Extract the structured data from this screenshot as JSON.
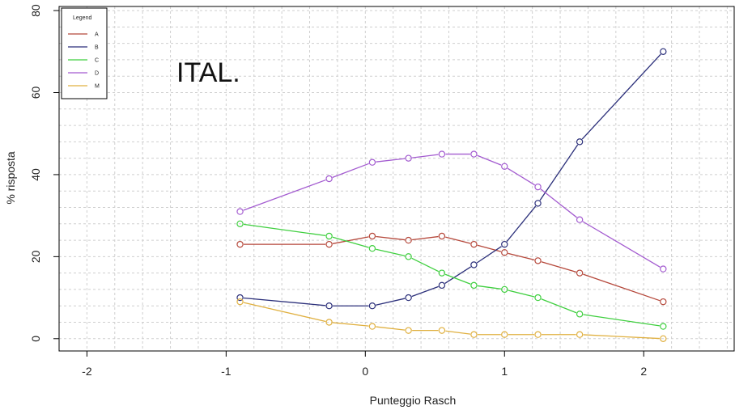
{
  "chart_data": {
    "type": "line",
    "title": "",
    "annotation": "ITAL.",
    "xlabel": "Punteggio Rasch",
    "ylabel": "% risposta",
    "xlim": [
      -2.2,
      2.65
    ],
    "ylim": [
      -3,
      81
    ],
    "xticks": [
      -2,
      -1,
      0,
      1,
      2
    ],
    "yticks": [
      0,
      20,
      40,
      60,
      80
    ],
    "xtick_labels": [
      "-2",
      "-1",
      "0",
      "1",
      "2"
    ],
    "ytick_labels": [
      "0",
      "20",
      "40",
      "60",
      "80"
    ],
    "grid": true,
    "legend": {
      "title": "Legend",
      "position": "top-left"
    },
    "x": [
      -0.9,
      -0.26,
      0.05,
      0.31,
      0.55,
      0.78,
      1.0,
      1.24,
      1.54,
      2.14
    ],
    "series": [
      {
        "name": "A",
        "color": "#b5473a",
        "values": [
          23,
          23,
          25,
          24,
          25,
          23,
          21,
          19,
          16,
          9
        ]
      },
      {
        "name": "B",
        "color": "#2b2f7a",
        "values": [
          10,
          8,
          8,
          10,
          13,
          18,
          23,
          33,
          48,
          70
        ]
      },
      {
        "name": "C",
        "color": "#3fcf3f",
        "values": [
          28,
          25,
          22,
          20,
          16,
          13,
          12,
          10,
          6,
          3
        ]
      },
      {
        "name": "D",
        "color": "#a35bd0",
        "values": [
          31,
          39,
          43,
          44,
          45,
          45,
          42,
          37,
          29,
          17
        ]
      },
      {
        "name": "M",
        "color": "#e0b040",
        "values": [
          9,
          4,
          3,
          2,
          2,
          1,
          1,
          1,
          1,
          0
        ]
      }
    ]
  }
}
